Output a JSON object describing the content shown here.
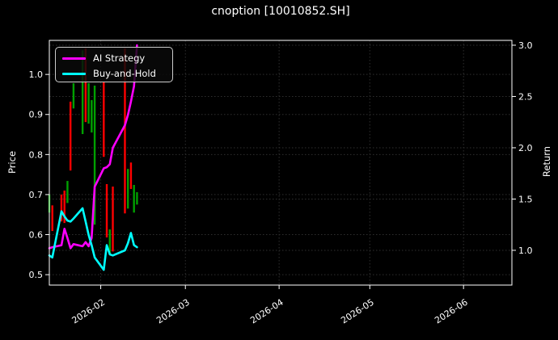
{
  "title": "cnoption [10010852.SH]",
  "legend": {
    "items": [
      {
        "label": "AI Strategy",
        "color": "#ff00ff"
      },
      {
        "label": "Buy-and-Hold",
        "color": "#00ffff"
      }
    ]
  },
  "colors": {
    "background": "#000000",
    "text": "#ffffff",
    "grid": "#2f2f2f",
    "frame": "#ffffff",
    "candle_up": "#00a000",
    "candle_down": "#ff0000",
    "ai_strategy": "#ff00ff",
    "buy_and_hold": "#00ffff"
  },
  "chart_data": {
    "type": "candlestick+line",
    "title": "cnoption [10010852.SH]",
    "grid": true,
    "legend_position": "upper left",
    "x_axis": {
      "min": "2026-01-15",
      "max": "2026-06-17",
      "ticks": [
        {
          "label": "2026-02",
          "date": "2026-02-01"
        },
        {
          "label": "2026-03",
          "date": "2026-03-01"
        },
        {
          "label": "2026-04",
          "date": "2026-04-01"
        },
        {
          "label": "2026-05",
          "date": "2026-05-01"
        },
        {
          "label": "2026-06",
          "date": "2026-06-01"
        }
      ]
    },
    "price_axis": {
      "label": "Price",
      "side": "left",
      "ticks": [
        0.5,
        0.6,
        0.7,
        0.8,
        0.9,
        1.0
      ],
      "lim": [
        0.474,
        1.085
      ]
    },
    "return_axis": {
      "label": "Return",
      "side": "right",
      "ticks": [
        1.0,
        1.5,
        2.0,
        2.5,
        3.0
      ],
      "lim": [
        0.661,
        3.047
      ]
    },
    "candles": [
      {
        "date": "2026-01-15",
        "dir": "up",
        "high": 0.7,
        "low": 0.655
      },
      {
        "date": "2026-01-16",
        "dir": "down",
        "high": 0.673,
        "low": 0.609
      },
      {
        "date": "2026-01-19",
        "dir": "down",
        "high": 0.7,
        "low": 0.633
      },
      {
        "date": "2026-01-20",
        "dir": "down",
        "high": 0.71,
        "low": 0.629
      },
      {
        "date": "2026-01-21",
        "dir": "up",
        "high": 0.734,
        "low": 0.679
      },
      {
        "date": "2026-01-22",
        "dir": "down",
        "high": 0.932,
        "low": 0.76
      },
      {
        "date": "2026-01-23",
        "dir": "up",
        "high": 0.978,
        "low": 0.915
      },
      {
        "date": "2026-01-26",
        "dir": "up",
        "high": 1.06,
        "low": 0.851
      },
      {
        "date": "2026-01-27",
        "dir": "down",
        "high": 1.065,
        "low": 0.881
      },
      {
        "date": "2026-01-28",
        "dir": "up",
        "high": 0.978,
        "low": 0.877
      },
      {
        "date": "2026-01-29",
        "dir": "up",
        "high": 0.936,
        "low": 0.855
      },
      {
        "date": "2026-01-30",
        "dir": "up",
        "high": 0.972,
        "low": 0.625
      },
      {
        "date": "2026-02-02",
        "dir": "down",
        "high": 0.982,
        "low": 0.794
      },
      {
        "date": "2026-02-03",
        "dir": "down",
        "high": 0.726,
        "low": 0.593
      },
      {
        "date": "2026-02-04",
        "dir": "up",
        "high": 0.613,
        "low": 0.552
      },
      {
        "date": "2026-02-05",
        "dir": "down",
        "high": 0.72,
        "low": 0.558
      },
      {
        "date": "2026-02-09",
        "dir": "down",
        "high": 1.065,
        "low": 0.653
      },
      {
        "date": "2026-02-10",
        "dir": "up",
        "high": 0.764,
        "low": 0.665
      },
      {
        "date": "2026-02-11",
        "dir": "down",
        "high": 0.78,
        "low": 0.714
      },
      {
        "date": "2026-02-12",
        "dir": "up",
        "high": 0.724,
        "low": 0.655
      },
      {
        "date": "2026-02-13",
        "dir": "up",
        "high": 0.706,
        "low": 0.675
      }
    ],
    "series_dates": [
      "2026-01-15",
      "2026-01-16",
      "2026-01-19",
      "2026-01-20",
      "2026-01-21",
      "2026-01-22",
      "2026-01-23",
      "2026-01-26",
      "2026-01-27",
      "2026-01-28",
      "2026-01-29",
      "2026-01-30",
      "2026-02-02",
      "2026-02-03",
      "2026-02-04",
      "2026-02-05",
      "2026-02-09",
      "2026-02-10",
      "2026-02-11",
      "2026-02-12",
      "2026-02-13"
    ],
    "series": [
      {
        "name": "AI Strategy",
        "axis": "return",
        "color": "#ff00ff",
        "values": [
          1.02,
          1.03,
          1.05,
          1.21,
          1.12,
          1.02,
          1.06,
          1.04,
          1.08,
          1.04,
          1.12,
          1.62,
          1.8,
          1.81,
          1.84,
          2.0,
          2.22,
          2.32,
          2.45,
          2.6,
          3.0
        ]
      },
      {
        "name": "Buy-and-Hold",
        "axis": "return",
        "color": "#00ffff",
        "values": [
          0.95,
          0.93,
          1.38,
          1.33,
          1.29,
          1.28,
          1.31,
          1.41,
          1.28,
          1.15,
          1.05,
          0.93,
          0.81,
          1.05,
          0.96,
          0.95,
          1.0,
          1.07,
          1.17,
          1.05,
          1.03
        ]
      }
    ]
  }
}
